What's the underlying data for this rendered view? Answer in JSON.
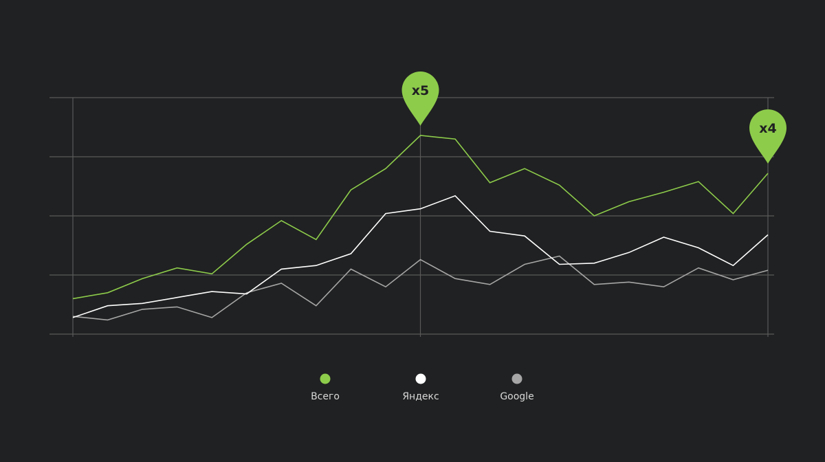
{
  "chart_data": {
    "type": "line",
    "x": [
      1,
      2,
      3,
      4,
      5,
      6,
      7,
      8,
      9,
      10,
      11,
      12,
      13,
      14,
      15,
      16,
      17,
      18,
      19,
      20,
      21
    ],
    "ylim": [
      0,
      100
    ],
    "grid": true,
    "legend_placement": "bottom-center",
    "series": [
      {
        "name": "Всего",
        "color": "#8dcc4b",
        "values": [
          15,
          17.5,
          23.5,
          28,
          25.5,
          38,
          48,
          40,
          61,
          70,
          84,
          82.5,
          64,
          70,
          63,
          50,
          56,
          60,
          64.5,
          51,
          68
        ]
      },
      {
        "name": "Яндекс",
        "color": "#ffffff",
        "values": [
          7,
          12,
          13,
          15.5,
          18,
          17,
          27.5,
          29,
          34,
          51,
          53,
          58.5,
          43.5,
          41.5,
          29.5,
          30,
          34.5,
          41,
          36.5,
          29,
          42
        ]
      },
      {
        "name": "Google",
        "color": "#a6a6a6",
        "values": [
          7.5,
          6,
          10.5,
          11.5,
          7,
          17.5,
          21.5,
          12,
          27.5,
          20,
          31.5,
          23.5,
          21,
          29.5,
          33,
          21,
          22,
          20,
          28,
          23,
          27
        ]
      }
    ],
    "annotations": [
      {
        "label": "x5",
        "x": 11,
        "series": "Всего"
      },
      {
        "label": "x4",
        "x": 21,
        "series": "Всего"
      }
    ]
  },
  "legend": {
    "items": [
      {
        "label": "Всего",
        "color": "#8dcc4b",
        "icon": "dot-icon"
      },
      {
        "label": "Яндекс",
        "color": "#ffffff",
        "icon": "dot-icon"
      },
      {
        "label": "Google",
        "color": "#a6a6a6",
        "icon": "dot-icon"
      }
    ]
  },
  "colors": {
    "background": "#202122",
    "grid": "#5a5a5a",
    "pin": "#8dcc4b"
  }
}
